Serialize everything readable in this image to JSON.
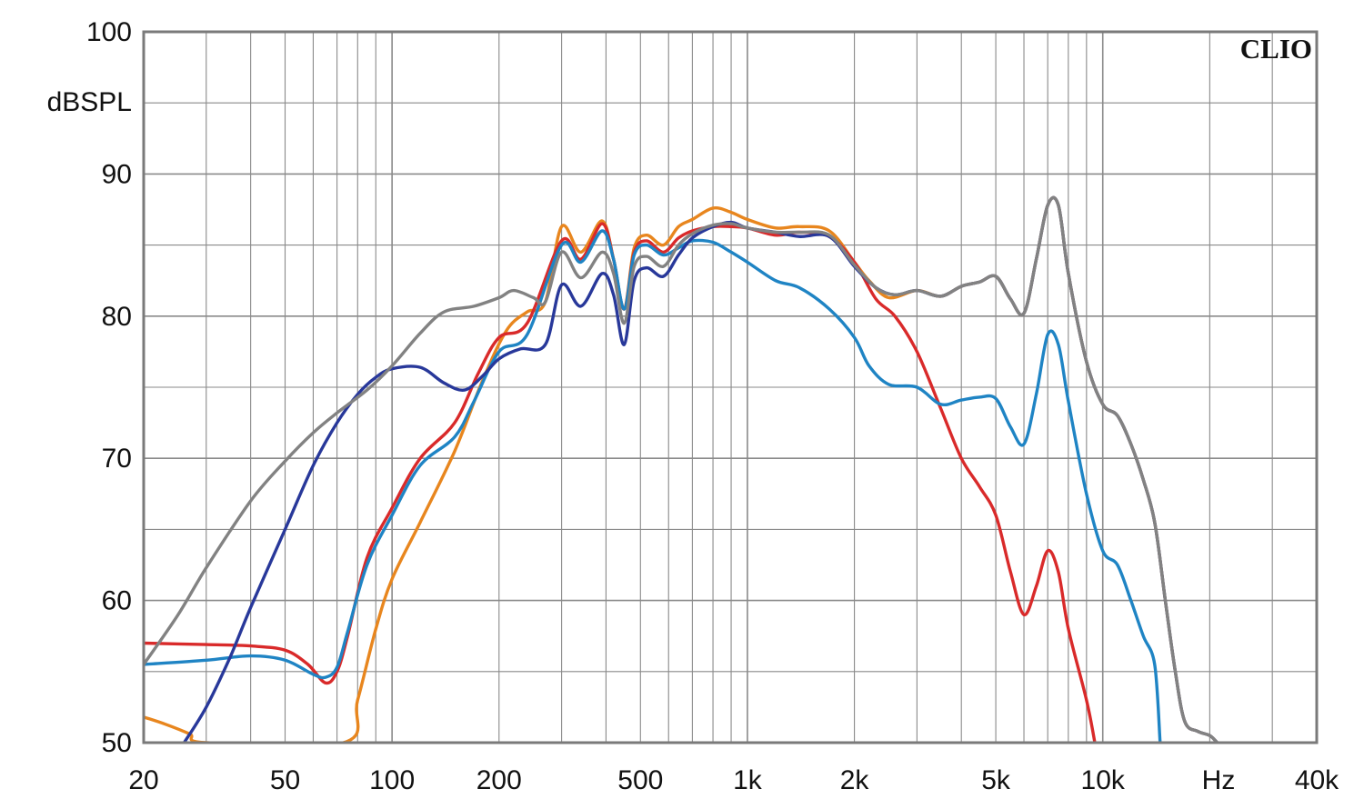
{
  "brand": "CLIO",
  "chart_data": {
    "type": "line",
    "x_scale": "log",
    "y_unit_label": "dBSPL",
    "x_unit_label": "Hz",
    "xlim": [
      20,
      40000
    ],
    "ylim": [
      50,
      100
    ],
    "grid": true,
    "x_ticks": [
      {
        "value": 20,
        "label": "20"
      },
      {
        "value": 50,
        "label": "50"
      },
      {
        "value": 100,
        "label": "100"
      },
      {
        "value": 200,
        "label": "200"
      },
      {
        "value": 500,
        "label": "500"
      },
      {
        "value": 1000,
        "label": "1k"
      },
      {
        "value": 2000,
        "label": "2k"
      },
      {
        "value": 5000,
        "label": "5k"
      },
      {
        "value": 10000,
        "label": "10k"
      },
      {
        "value": 40000,
        "label": "40k"
      }
    ],
    "y_ticks": [
      {
        "value": 100,
        "label": "100"
      },
      {
        "value": 90,
        "label": "90"
      },
      {
        "value": 80,
        "label": "80"
      },
      {
        "value": 70,
        "label": "70"
      },
      {
        "value": 60,
        "label": "60"
      },
      {
        "value": 50,
        "label": "50"
      }
    ],
    "series": [
      {
        "color": "#e8861e",
        "points": [
          [
            20,
            51.8
          ],
          [
            23,
            51.3
          ],
          [
            27,
            50.6
          ],
          [
            30,
            50
          ],
          [
            73,
            50
          ],
          [
            80,
            53
          ],
          [
            90,
            58
          ],
          [
            100,
            61.5
          ],
          [
            120,
            65.5
          ],
          [
            150,
            70.5
          ],
          [
            180,
            75.5
          ],
          [
            210,
            79
          ],
          [
            240,
            80.3
          ],
          [
            270,
            81
          ],
          [
            300,
            86.3
          ],
          [
            340,
            84.5
          ],
          [
            390,
            86.7
          ],
          [
            420,
            84
          ],
          [
            450,
            80.5
          ],
          [
            480,
            84.8
          ],
          [
            520,
            85.7
          ],
          [
            580,
            85
          ],
          [
            640,
            86.3
          ],
          [
            700,
            86.8
          ],
          [
            800,
            87.6
          ],
          [
            900,
            87.3
          ],
          [
            1000,
            86.8
          ],
          [
            1200,
            86.2
          ],
          [
            1400,
            86.3
          ],
          [
            1700,
            86
          ],
          [
            2000,
            83.8
          ],
          [
            2200,
            82.5
          ],
          [
            2500,
            81.3
          ],
          [
            3000,
            81.8
          ],
          [
            3500,
            81.4
          ],
          [
            4000,
            82.1
          ],
          [
            4500,
            82.4
          ],
          [
            5000,
            82.8
          ],
          [
            5500,
            81.2
          ],
          [
            6000,
            80.2
          ],
          [
            6500,
            84
          ],
          [
            7000,
            87.8
          ],
          [
            7500,
            87.8
          ],
          [
            8000,
            83
          ],
          [
            9000,
            76.8
          ],
          [
            10000,
            73.8
          ],
          [
            11000,
            73
          ],
          [
            12000,
            71
          ],
          [
            13000,
            68.5
          ],
          [
            14000,
            65.5
          ],
          [
            15000,
            60
          ],
          [
            16000,
            55
          ],
          [
            17000,
            51.5
          ],
          [
            18500,
            50.8
          ],
          [
            20000,
            50.5
          ],
          [
            21000,
            50
          ]
        ]
      },
      {
        "color": "#d92a2a",
        "points": [
          [
            20,
            57
          ],
          [
            30,
            56.9
          ],
          [
            40,
            56.8
          ],
          [
            50,
            56.5
          ],
          [
            58,
            55.5
          ],
          [
            65,
            54.2
          ],
          [
            70,
            55
          ],
          [
            75,
            57.5
          ],
          [
            85,
            63
          ],
          [
            100,
            66.5
          ],
          [
            120,
            70
          ],
          [
            150,
            72.5
          ],
          [
            175,
            76
          ],
          [
            200,
            78.5
          ],
          [
            240,
            79.5
          ],
          [
            300,
            85.3
          ],
          [
            340,
            84
          ],
          [
            390,
            86.5
          ],
          [
            420,
            84
          ],
          [
            450,
            80.5
          ],
          [
            480,
            84.5
          ],
          [
            520,
            85.3
          ],
          [
            580,
            84.5
          ],
          [
            640,
            85.5
          ],
          [
            700,
            86
          ],
          [
            800,
            86.3
          ],
          [
            900,
            86.3
          ],
          [
            1000,
            86.2
          ],
          [
            1200,
            85.7
          ],
          [
            1400,
            85.9
          ],
          [
            1700,
            85.6
          ],
          [
            2000,
            83.8
          ],
          [
            2300,
            81.2
          ],
          [
            2600,
            80
          ],
          [
            3000,
            77.5
          ],
          [
            3500,
            73.5
          ],
          [
            4000,
            70
          ],
          [
            4500,
            68
          ],
          [
            5000,
            66
          ],
          [
            5500,
            62
          ],
          [
            6000,
            59
          ],
          [
            6500,
            61
          ],
          [
            7000,
            63.5
          ],
          [
            7500,
            62
          ],
          [
            8000,
            58
          ],
          [
            9000,
            53
          ],
          [
            9500,
            50
          ]
        ]
      },
      {
        "color": "#1f84c4",
        "points": [
          [
            20,
            55.5
          ],
          [
            30,
            55.8
          ],
          [
            40,
            56.1
          ],
          [
            50,
            55.8
          ],
          [
            60,
            54.8
          ],
          [
            65,
            54.6
          ],
          [
            70,
            55.3
          ],
          [
            75,
            57.8
          ],
          [
            85,
            62.5
          ],
          [
            100,
            66
          ],
          [
            120,
            69.5
          ],
          [
            150,
            71.5
          ],
          [
            170,
            74
          ],
          [
            200,
            77.5
          ],
          [
            240,
            78.7
          ],
          [
            300,
            85
          ],
          [
            340,
            83.8
          ],
          [
            390,
            86
          ],
          [
            420,
            84
          ],
          [
            450,
            80.5
          ],
          [
            480,
            84.3
          ],
          [
            520,
            85
          ],
          [
            580,
            84.3
          ],
          [
            640,
            84.8
          ],
          [
            700,
            85.3
          ],
          [
            800,
            85.2
          ],
          [
            900,
            84.5
          ],
          [
            1000,
            83.8
          ],
          [
            1200,
            82.5
          ],
          [
            1400,
            82
          ],
          [
            1700,
            80.5
          ],
          [
            2000,
            78.5
          ],
          [
            2200,
            76.5
          ],
          [
            2500,
            75.2
          ],
          [
            3000,
            75
          ],
          [
            3500,
            73.8
          ],
          [
            4000,
            74.1
          ],
          [
            4500,
            74.3
          ],
          [
            5000,
            74.2
          ],
          [
            5500,
            72.2
          ],
          [
            6000,
            71
          ],
          [
            6500,
            74.5
          ],
          [
            7000,
            78.7
          ],
          [
            7500,
            78
          ],
          [
            8000,
            74
          ],
          [
            9000,
            67.5
          ],
          [
            10000,
            63.5
          ],
          [
            11000,
            62.5
          ],
          [
            12000,
            60
          ],
          [
            13000,
            57.5
          ],
          [
            14000,
            55.5
          ],
          [
            14500,
            50
          ]
        ]
      },
      {
        "color": "#28389a",
        "points": [
          [
            26,
            50
          ],
          [
            30,
            52.5
          ],
          [
            35,
            56
          ],
          [
            40,
            59.5
          ],
          [
            50,
            65
          ],
          [
            60,
            69.5
          ],
          [
            70,
            72.5
          ],
          [
            80,
            74.5
          ],
          [
            90,
            75.7
          ],
          [
            100,
            76.3
          ],
          [
            120,
            76.4
          ],
          [
            140,
            75.3
          ],
          [
            160,
            74.8
          ],
          [
            180,
            75.8
          ],
          [
            200,
            77
          ],
          [
            230,
            77.7
          ],
          [
            270,
            78
          ],
          [
            300,
            82.2
          ],
          [
            340,
            80.7
          ],
          [
            390,
            83
          ],
          [
            420,
            81.5
          ],
          [
            450,
            78
          ],
          [
            480,
            82.5
          ],
          [
            520,
            83.4
          ],
          [
            580,
            82.8
          ],
          [
            640,
            84.3
          ],
          [
            700,
            85.5
          ],
          [
            800,
            86.3
          ],
          [
            900,
            86.6
          ],
          [
            1000,
            86.2
          ],
          [
            1200,
            85.9
          ],
          [
            1400,
            85.6
          ],
          [
            1700,
            85.6
          ],
          [
            2000,
            83.5
          ],
          [
            2300,
            82
          ],
          [
            2600,
            81.5
          ],
          [
            3000,
            81.8
          ],
          [
            3500,
            81.4
          ],
          [
            4000,
            82.1
          ],
          [
            4500,
            82.4
          ],
          [
            5000,
            82.8
          ],
          [
            5500,
            81.2
          ],
          [
            6000,
            80.2
          ],
          [
            6500,
            84
          ],
          [
            7000,
            87.8
          ],
          [
            7500,
            87.8
          ],
          [
            8000,
            83
          ],
          [
            9000,
            76.8
          ],
          [
            10000,
            73.8
          ],
          [
            11000,
            73
          ],
          [
            12000,
            71
          ],
          [
            13000,
            68.5
          ],
          [
            14000,
            65.5
          ],
          [
            15000,
            60
          ],
          [
            16000,
            55
          ],
          [
            17000,
            51.5
          ],
          [
            18500,
            50.8
          ],
          [
            20000,
            50.5
          ],
          [
            21000,
            50
          ]
        ]
      },
      {
        "color": "#828282",
        "points": [
          [
            20,
            55.5
          ],
          [
            25,
            59
          ],
          [
            30,
            62.3
          ],
          [
            40,
            67
          ],
          [
            50,
            69.8
          ],
          [
            60,
            71.8
          ],
          [
            70,
            73.2
          ],
          [
            85,
            74.8
          ],
          [
            100,
            76.5
          ],
          [
            120,
            78.8
          ],
          [
            140,
            80.3
          ],
          [
            170,
            80.7
          ],
          [
            200,
            81.3
          ],
          [
            220,
            81.8
          ],
          [
            250,
            81.3
          ],
          [
            270,
            81
          ],
          [
            300,
            84.5
          ],
          [
            340,
            82.7
          ],
          [
            390,
            84.5
          ],
          [
            420,
            83
          ],
          [
            450,
            79.5
          ],
          [
            480,
            83.5
          ],
          [
            520,
            84.2
          ],
          [
            580,
            83.5
          ],
          [
            640,
            85
          ],
          [
            700,
            85.8
          ],
          [
            800,
            86.4
          ],
          [
            900,
            86.5
          ],
          [
            1000,
            86.2
          ],
          [
            1200,
            85.9
          ],
          [
            1400,
            85.9
          ],
          [
            1700,
            85.7
          ],
          [
            2000,
            83.6
          ],
          [
            2300,
            82
          ],
          [
            2600,
            81.5
          ],
          [
            3000,
            81.8
          ],
          [
            3500,
            81.4
          ],
          [
            4000,
            82.1
          ],
          [
            4500,
            82.4
          ],
          [
            5000,
            82.8
          ],
          [
            5500,
            81.2
          ],
          [
            6000,
            80.2
          ],
          [
            6500,
            84
          ],
          [
            7000,
            87.8
          ],
          [
            7500,
            87.8
          ],
          [
            8000,
            83
          ],
          [
            9000,
            76.8
          ],
          [
            10000,
            73.8
          ],
          [
            11000,
            73
          ],
          [
            12000,
            71
          ],
          [
            13000,
            68.5
          ],
          [
            14000,
            65.5
          ],
          [
            15000,
            60
          ],
          [
            16000,
            55
          ],
          [
            17000,
            51.5
          ],
          [
            18500,
            50.8
          ],
          [
            20000,
            50.5
          ],
          [
            21000,
            50
          ]
        ]
      }
    ]
  }
}
